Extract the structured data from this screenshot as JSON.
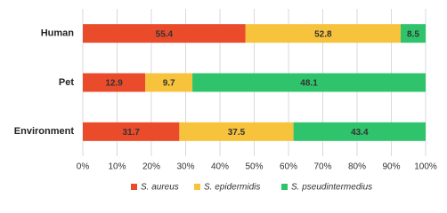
{
  "chart_data": {
    "type": "bar",
    "orientation": "horizontal",
    "stacked_percent": true,
    "categories": [
      "Human",
      "Pet",
      "Environment"
    ],
    "series": [
      {
        "name": "S. aureus",
        "color": "#e94b2b",
        "values": [
          55.4,
          12.9,
          31.7
        ]
      },
      {
        "name": "S. epidermidis",
        "color": "#f7c33c",
        "values": [
          52.8,
          9.7,
          37.5
        ]
      },
      {
        "name": "S. pseudintermedius",
        "color": "#2fc46b",
        "values": [
          8.5,
          48.1,
          43.4
        ]
      }
    ],
    "xlim": [
      0,
      100
    ],
    "xticks": [
      {
        "value": 0,
        "label": "0%"
      },
      {
        "value": 10,
        "label": "10%"
      },
      {
        "value": 20,
        "label": "20%"
      },
      {
        "value": 30,
        "label": "30%"
      },
      {
        "value": 40,
        "label": "40%"
      },
      {
        "value": 50,
        "label": "50%"
      },
      {
        "value": 60,
        "label": "60%"
      },
      {
        "value": 70,
        "label": "70%"
      },
      {
        "value": 80,
        "label": "80%"
      },
      {
        "value": 90,
        "label": "90%"
      },
      {
        "value": 100,
        "label": "100%"
      }
    ],
    "grid": true,
    "legend": "bottom"
  }
}
